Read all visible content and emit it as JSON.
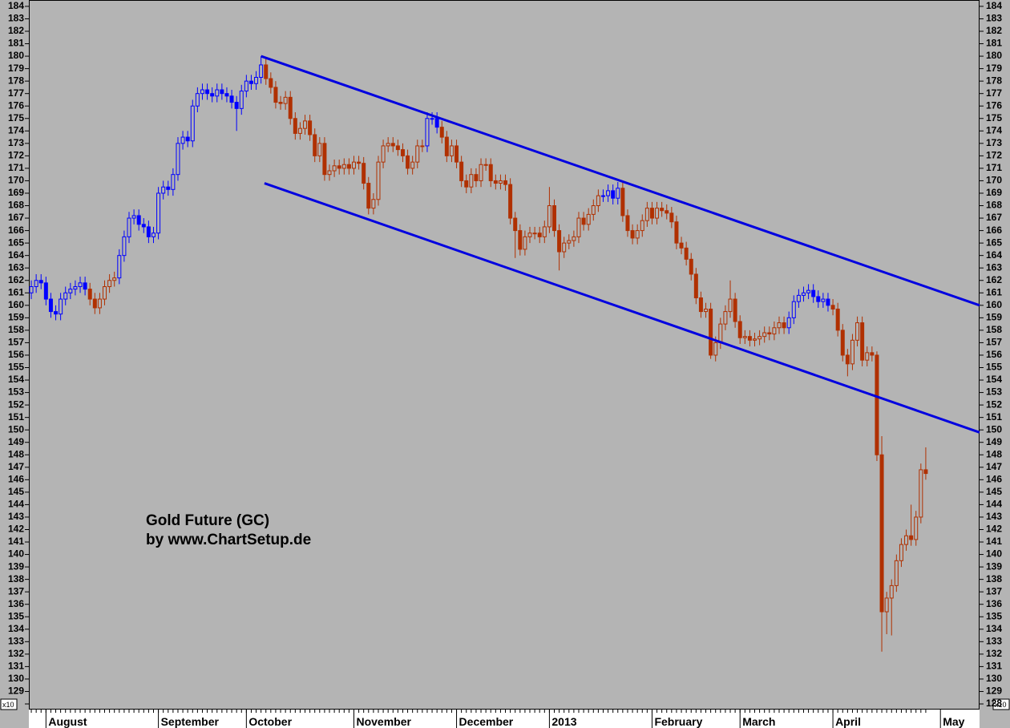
{
  "chart_data": {
    "type": "candlestick",
    "annotations": [
      "Gold Future (GC)",
      "by www.ChartSetup.de"
    ],
    "multiplier_label": "x10",
    "xlim": [
      -0.5,
      194
    ],
    "xticks": [
      {
        "value": 3,
        "label": "August"
      },
      {
        "value": 26,
        "label": "September"
      },
      {
        "value": 44,
        "label": "October"
      },
      {
        "value": 66,
        "label": "November"
      },
      {
        "value": 87,
        "label": "December"
      },
      {
        "value": 106,
        "label": "2013"
      },
      {
        "value": 127,
        "label": "February"
      },
      {
        "value": 145,
        "label": "March"
      },
      {
        "value": 164,
        "label": "April"
      },
      {
        "value": 186,
        "label": "May"
      }
    ],
    "ylim": [
      127.55,
      184.51
    ],
    "yticks": [
      128,
      129,
      130,
      131,
      132,
      133,
      134,
      135,
      136,
      137,
      138,
      139,
      140,
      141,
      142,
      143,
      144,
      145,
      146,
      147,
      148,
      149,
      150,
      151,
      152,
      153,
      154,
      155,
      156,
      157,
      158,
      159,
      160,
      161,
      162,
      163,
      164,
      165,
      166,
      167,
      168,
      169,
      170,
      171,
      172,
      173,
      174,
      175,
      176,
      177,
      178,
      179,
      180,
      181,
      182,
      183,
      184
    ],
    "trend_colors": [
      {
        "from": 0,
        "color": "#0000ff"
      },
      {
        "from": 12,
        "color": "#b03000"
      },
      {
        "from": 18,
        "color": "#0000ff"
      },
      {
        "from": 48,
        "color": "#b03000"
      },
      {
        "from": 81,
        "color": "#0000ff"
      },
      {
        "from": 84,
        "color": "#b03000"
      },
      {
        "from": 117,
        "color": "#0000ff"
      },
      {
        "from": 121,
        "color": "#b03000"
      },
      {
        "from": 155,
        "color": "#0000ff"
      },
      {
        "from": 164,
        "color": "#b03000"
      }
    ],
    "channel_color": "#0000e0",
    "channel": [
      {
        "start": [
          47,
          180
        ],
        "end": [
          194,
          160
        ]
      },
      {
        "start": [
          47.7,
          169.8
        ],
        "end": [
          194,
          149.8
        ]
      }
    ],
    "open": [
      161,
      161.5,
      162,
      161.8,
      160.5,
      159.5,
      159.3,
      160.5,
      161,
      161.3,
      161.5,
      161.8,
      161.3,
      160.5,
      159.8,
      160.5,
      161.5,
      162,
      162.2,
      164,
      165.5,
      167,
      167.2,
      166.5,
      166.3,
      165.5,
      165.8,
      169,
      169.5,
      169.3,
      170.5,
      173,
      173.5,
      173.2,
      176,
      177,
      177.3,
      177,
      176.8,
      177.3,
      177,
      176.8,
      176.3,
      175.8,
      177.2,
      178,
      177.8,
      178.3,
      179.3,
      178.2,
      177.5,
      176.3,
      176.2,
      176.7,
      175,
      173.8,
      174.2,
      174.8,
      173.7,
      172,
      173,
      170.5,
      170.8,
      171.2,
      171,
      171.3,
      171,
      171.5,
      171.4,
      169.8,
      167.8,
      168.5,
      171.5,
      172.8,
      173,
      172.8,
      172.5,
      172,
      171,
      171.5,
      172.8,
      172.8,
      175,
      175,
      174.3,
      173.5,
      172,
      172.8,
      171.5,
      170,
      169.5,
      170.5,
      170,
      171.3,
      171.3,
      170,
      169.8,
      170,
      169.7,
      167,
      166,
      164.5,
      165.5,
      165.8,
      165.8,
      165.5,
      166.3,
      168,
      166,
      164.3,
      165,
      165.2,
      165.5,
      167,
      166.5,
      167.3,
      168,
      168.8,
      168.8,
      169.2,
      168.6,
      169.4,
      167.2,
      166,
      165.4,
      166,
      166.8,
      167.8,
      167,
      167.8,
      167.6,
      167.4,
      166.7,
      165,
      164.6,
      163.7,
      162.5,
      160.6,
      159.5,
      159.7,
      156,
      157,
      158.5,
      159.5,
      160.5,
      158.7,
      157.4,
      157.5,
      157.2,
      157.3,
      157.5,
      157.8,
      157.7,
      158.2,
      158.6,
      158.2,
      159,
      160.3,
      160.8,
      161,
      161.2,
      160.7,
      160.3,
      160.5,
      160,
      159.7,
      158,
      156,
      155.3,
      157.2,
      158.6,
      155.6,
      156.2,
      156,
      148,
      135.4,
      136.5,
      137.5,
      139.5,
      140.8,
      141.5,
      141.2,
      143,
      146.8
    ],
    "high": [
      162,
      162.5,
      162.5,
      162.3,
      161,
      160,
      161,
      161.5,
      161.8,
      162,
      162.3,
      162.3,
      161.8,
      161,
      161,
      162,
      162.5,
      162.7,
      164.5,
      166,
      167.5,
      167.7,
      167.7,
      167,
      166.8,
      166.3,
      169.5,
      170,
      170,
      171,
      173.5,
      174,
      174,
      176.5,
      177.5,
      177.8,
      177.8,
      177.5,
      177.8,
      177.8,
      177.5,
      177.3,
      176.8,
      177.7,
      178.5,
      178.5,
      178.8,
      180,
      179.8,
      178.7,
      178,
      176.8,
      177.2,
      177.2,
      175.5,
      174.7,
      175.3,
      175.3,
      174.2,
      173.5,
      173.5,
      171.3,
      171.7,
      171.7,
      171.8,
      171.8,
      172,
      172,
      171.9,
      170.3,
      169,
      172,
      173.3,
      173.5,
      173.5,
      173.3,
      173,
      172.5,
      172,
      173.3,
      173.3,
      175.5,
      175.5,
      175.5,
      174.8,
      174,
      173.3,
      173.3,
      172,
      170.5,
      171,
      171,
      171.8,
      171.8,
      171.8,
      170.5,
      170.5,
      170.5,
      170.2,
      167.5,
      166.5,
      166,
      166.3,
      166.3,
      166.3,
      166.8,
      169.5,
      168.5,
      166.5,
      165.5,
      165.7,
      166,
      167.5,
      167.5,
      167.8,
      168.5,
      169.3,
      169.3,
      169.7,
      169.7,
      169.9,
      169.9,
      167.7,
      166.5,
      166.5,
      167.3,
      168.3,
      168.3,
      168.3,
      168.3,
      168.1,
      167.9,
      167.2,
      165.5,
      165.1,
      164.2,
      163,
      161.1,
      160.2,
      160.2,
      157.5,
      159,
      160,
      162,
      161,
      159.2,
      158,
      158,
      157.8,
      158,
      158.3,
      158.3,
      158.7,
      159.1,
      159.1,
      159.5,
      160.8,
      161.3,
      161.5,
      161.7,
      161.7,
      161.2,
      161,
      161,
      160.5,
      160.2,
      158.5,
      156.5,
      157.7,
      159.1,
      159.1,
      156.7,
      156.7,
      156.3,
      149.5,
      137,
      138,
      140,
      141.3,
      142,
      144,
      143.5,
      147.3,
      148.6
    ],
    "low": [
      160.5,
      161,
      161.3,
      160,
      159,
      158.8,
      158.8,
      160,
      160.5,
      160.8,
      161,
      160.8,
      160,
      159.3,
      159.3,
      160,
      161,
      161.5,
      161.7,
      163.5,
      165,
      166.5,
      166,
      165.8,
      165,
      165,
      165.3,
      168.5,
      168.8,
      168.8,
      170,
      172.5,
      172.7,
      172.7,
      175.5,
      176.5,
      176.5,
      176.3,
      176.3,
      176.5,
      176.3,
      175.8,
      174,
      175.3,
      176.7,
      177.3,
      177.3,
      177.8,
      177.7,
      177,
      175.8,
      175.7,
      175.7,
      174.5,
      173.3,
      173.3,
      173.7,
      173.2,
      171.5,
      171.5,
      170,
      170,
      170.3,
      170.5,
      170.5,
      170.5,
      170.5,
      170.9,
      169.3,
      167.3,
      167.3,
      168,
      171,
      172.3,
      172.3,
      172,
      171.5,
      170.5,
      170.5,
      171,
      172.3,
      172.3,
      174.5,
      173.8,
      173,
      171.5,
      171.5,
      171,
      169.5,
      169,
      169,
      169.5,
      169.5,
      170.8,
      169.5,
      169.3,
      169.3,
      169.2,
      166.5,
      163.8,
      164,
      164,
      165,
      165.3,
      165,
      165,
      165.8,
      165.5,
      162.8,
      163.8,
      164.5,
      164.7,
      165,
      166,
      166,
      166.8,
      167.5,
      168.3,
      168.3,
      168.1,
      168.1,
      166.7,
      165.5,
      164.9,
      164.9,
      165.5,
      166.3,
      166.5,
      166.5,
      167.1,
      166.9,
      166.2,
      164.5,
      164.1,
      163.2,
      162,
      160.1,
      159,
      159,
      155.7,
      155.5,
      156.5,
      158,
      159,
      158.2,
      156.9,
      156.9,
      156.7,
      156.7,
      156.8,
      157,
      157.2,
      157.2,
      157.7,
      157.7,
      157.7,
      158.5,
      159.8,
      160.3,
      160.5,
      160.2,
      159.8,
      159.8,
      159.5,
      159.2,
      157.5,
      155.5,
      154.3,
      154.8,
      156.7,
      155.1,
      155.1,
      155.5,
      147.5,
      132.2,
      133.6,
      133.5,
      137,
      139,
      140.3,
      140.7,
      140.7,
      142.5,
      146
    ],
    "close": [
      161.5,
      162,
      161.8,
      160.5,
      159.5,
      159.3,
      160.5,
      161,
      161.3,
      161.5,
      161.8,
      161.3,
      160.5,
      159.8,
      160.5,
      161.5,
      162,
      162.2,
      164,
      165.5,
      167,
      167.2,
      166.5,
      166.3,
      165.5,
      165.8,
      169,
      169.5,
      169.3,
      170.5,
      173,
      173.5,
      173.2,
      176,
      177,
      177.3,
      177,
      176.8,
      177.3,
      177,
      176.8,
      176.3,
      175.8,
      177.2,
      178,
      177.8,
      178.3,
      179.3,
      178.2,
      177.5,
      176.3,
      176.2,
      176.7,
      175,
      173.8,
      174.2,
      174.8,
      173.7,
      172,
      173,
      170.5,
      170.8,
      171.2,
      171,
      171.3,
      171,
      171.5,
      171.4,
      169.8,
      167.8,
      168.5,
      171.5,
      172.8,
      173,
      172.8,
      172.5,
      172,
      171,
      171.5,
      172.8,
      172.8,
      175,
      175,
      174.3,
      173.5,
      172,
      172.8,
      171.5,
      170,
      169.5,
      170.5,
      170,
      171.3,
      171.3,
      170,
      169.8,
      170,
      169.7,
      167,
      166,
      164.5,
      165.5,
      165.8,
      165.8,
      165.5,
      166.3,
      168,
      166,
      164.3,
      165,
      165.2,
      165.5,
      167,
      166.5,
      167.3,
      168,
      168.8,
      168.8,
      169.2,
      168.6,
      169.4,
      167.2,
      166,
      165.4,
      166,
      166.8,
      167.8,
      167,
      167.8,
      167.6,
      167.4,
      166.7,
      165,
      164.6,
      163.7,
      162.5,
      160.6,
      159.5,
      159.7,
      156,
      157,
      158.5,
      159.5,
      160.5,
      158.7,
      157.4,
      157.5,
      157.2,
      157.3,
      157.5,
      157.8,
      157.7,
      158.2,
      158.6,
      158.2,
      159,
      160.3,
      160.8,
      161,
      161.2,
      160.7,
      160.3,
      160.5,
      160,
      159.7,
      158,
      156,
      155.3,
      157.2,
      158.6,
      155.6,
      156.2,
      156,
      148,
      135.4,
      136.5,
      137.5,
      139.5,
      140.8,
      141.5,
      141.2,
      143,
      146.8,
      146.5
    ]
  }
}
